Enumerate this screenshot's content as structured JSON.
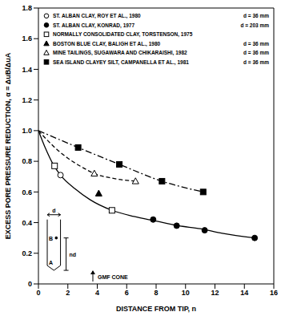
{
  "chart_data": {
    "type": "scatter",
    "x_label": "DISTANCE FROM TIP, n",
    "y_label": "EXCESS PORE PRESSURE REDUCTION, α = ΔuB/ΔuA",
    "xlim": [
      0,
      16
    ],
    "xticks": [
      0,
      2,
      4,
      6,
      8,
      10,
      12,
      14,
      16
    ],
    "ylim": [
      0,
      1.8
    ],
    "yticks": [
      0,
      0.2,
      0.4,
      0.6,
      0.8,
      {
        "value": 1,
        "label": "1.0"
      },
      1.2,
      1.4,
      1.6,
      1.8
    ],
    "grid": false,
    "legend": "top",
    "series": [
      {
        "name": "ST. ALBAN CLAY, ROY ET AL., 1980",
        "d": "d = 36 mm",
        "marker": "open_circle",
        "color": "#000000",
        "x": [
          1.5
        ],
        "values": [
          0.71
        ]
      },
      {
        "name": "ST. ALBAN CLAY, KONRAD, 1977",
        "d": "d = 203 mm",
        "marker": "filled_circle",
        "color": "#000000",
        "x": [
          7.8,
          9.4,
          11.3,
          14.7
        ],
        "values": [
          0.42,
          0.38,
          0.35,
          0.3
        ]
      },
      {
        "name": "NORMALLY CONSOLIDATED CLAY, TORSTENSON, 1975",
        "marker": "open_square",
        "color": "#000000",
        "x": [
          1.1,
          5
        ],
        "values": [
          0.77,
          0.48
        ]
      },
      {
        "name": "BOSTON BLUE CLAY, BALIGH ET AL., 1980",
        "d": "d = 36 mm",
        "marker": "filled_triangle",
        "color": "#000000",
        "x": [
          4.1
        ],
        "values": [
          0.59
        ]
      },
      {
        "name": "MINE TAILINGS, SUGAWARA AND CHIKARAISHI, 1982",
        "d": "d = 36 mm",
        "marker": "open_triangle",
        "color": "#000000",
        "x": [
          3.8,
          6.6
        ],
        "values": [
          0.72,
          0.67
        ]
      },
      {
        "name": "SEA ISLAND CLAYEY SILT, CAMPANELLA ET AL., 1981",
        "d": "d = 36 mm",
        "marker": "filled_square",
        "color": "#000000",
        "x": [
          2.7,
          5.5,
          8.4,
          11.2
        ],
        "values": [
          0.89,
          0.78,
          0.67,
          0.6
        ]
      }
    ],
    "curves": [
      {
        "line_style": "solid",
        "color": "#000000",
        "x": [
          0,
          0.5,
          1,
          1.5,
          2.5,
          3.5,
          5,
          6.5,
          8,
          9.5,
          11,
          12.5,
          14.7
        ],
        "values": [
          1,
          0.88,
          0.78,
          0.71,
          0.62,
          0.55,
          0.48,
          0.44,
          0.41,
          0.38,
          0.36,
          0.33,
          0.3
        ]
      },
      {
        "line_style": "dashed",
        "color": "#000000",
        "x": [
          0,
          1,
          2,
          3,
          3.8,
          5,
          6.6
        ],
        "values": [
          1,
          0.9,
          0.82,
          0.76,
          0.72,
          0.69,
          0.67
        ]
      },
      {
        "line_style": "dash_dot",
        "color": "#000000",
        "x": [
          0,
          2.7,
          5.5,
          8.4,
          11.2
        ],
        "values": [
          1,
          0.89,
          0.78,
          0.67,
          0.6
        ]
      }
    ],
    "annotations": [
      "d",
      "B",
      "A",
      "nd",
      "GMF CONE"
    ]
  }
}
